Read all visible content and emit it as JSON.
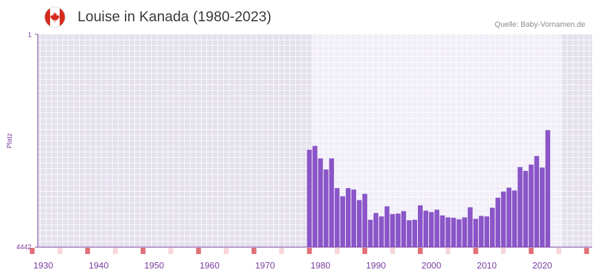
{
  "header": {
    "title": "Louise in Kanada (1980-2023)",
    "source": "Quelle: Baby-Vornamen.de",
    "flag_icon": "canada-flag-icon"
  },
  "colors": {
    "bar": "#8a55c8",
    "plot_bg_outside": "#e4e0ec",
    "plot_bg_range": "#f1eef8",
    "grid": "#ffffff",
    "axis": "#7a3d9e",
    "tick_label": "#7a3d9e",
    "rug": "#e07078",
    "rug_light": "#f6d6da"
  },
  "chart_data": {
    "type": "bar",
    "title": "Louise in Kanada (1980-2023)",
    "xlabel": "",
    "ylabel": "Platz",
    "y_axis_reversed": true,
    "ylim": [
      1,
      4442
    ],
    "y_ticks": [
      "1",
      "4442"
    ],
    "xlim": [
      1929,
      2029
    ],
    "x_ticks": [
      1930,
      1940,
      1950,
      1960,
      1970,
      1980,
      1990,
      2000,
      2010,
      2020
    ],
    "highlight_range": [
      1979,
      2023
    ],
    "grid": true,
    "x": [
      1978,
      1979,
      1980,
      1981,
      1982,
      1983,
      1984,
      1985,
      1986,
      1987,
      1988,
      1989,
      1990,
      1991,
      1992,
      1993,
      1994,
      1995,
      1996,
      1997,
      1998,
      1999,
      2000,
      2001,
      2002,
      2003,
      2004,
      2005,
      2006,
      2007,
      2008,
      2009,
      2010,
      2011,
      2012,
      2013,
      2014,
      2015,
      2016,
      2017,
      2018,
      2019,
      2020,
      2021,
      2022
    ],
    "values": [
      2410,
      2330,
      2590,
      2820,
      2590,
      3210,
      3380,
      3210,
      3240,
      3460,
      3330,
      3870,
      3730,
      3800,
      3590,
      3750,
      3740,
      3690,
      3880,
      3870,
      3570,
      3680,
      3710,
      3660,
      3780,
      3820,
      3830,
      3860,
      3820,
      3610,
      3850,
      3790,
      3800,
      3620,
      3410,
      3280,
      3200,
      3260,
      2770,
      2850,
      2720,
      2540,
      2780,
      2000,
      4442
    ],
    "rug_years": [
      1928,
      1933,
      1938,
      1943,
      1948,
      1953,
      1958,
      1963,
      1968,
      1973,
      1978,
      1983,
      1988,
      1993,
      1998,
      2003,
      2008,
      2013,
      2018,
      2023,
      2028
    ],
    "rug_strong": [
      1928,
      1938,
      1948,
      1958,
      1968,
      1978,
      1988,
      1998,
      2008,
      2018,
      2028
    ]
  }
}
